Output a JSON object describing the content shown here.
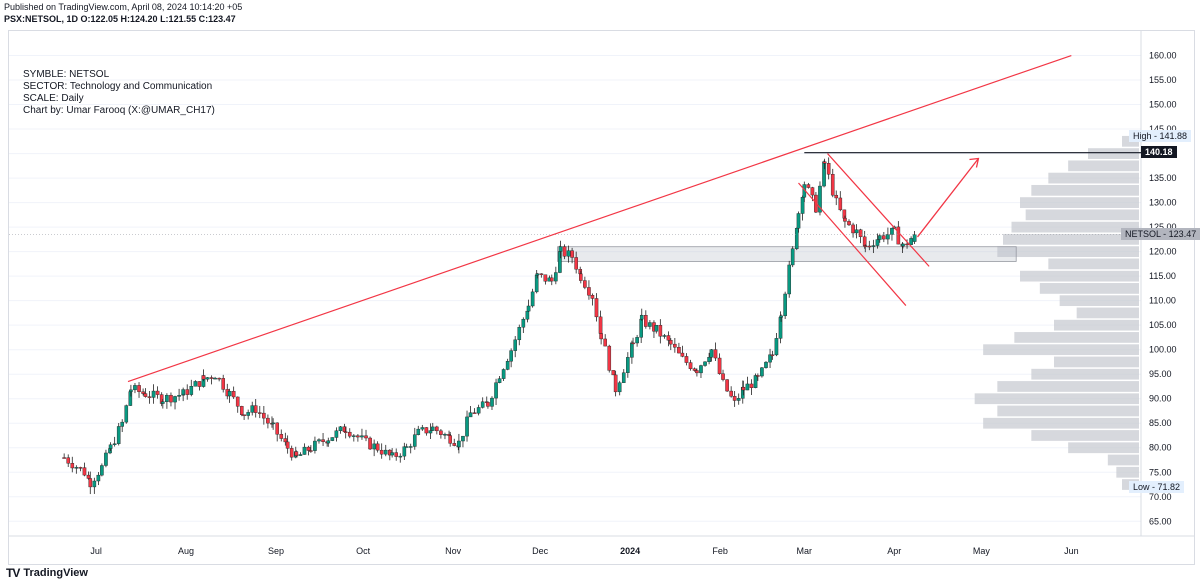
{
  "header": {
    "published": "Published on TradingView.com, April 08, 2024 10:14:20 +05",
    "ohlc": "PSX:NETSOL, 1D O:122.05 H:124.20 L:121.55 C:123.47"
  },
  "info_lines": [
    "SYMBLE: NETSOL",
    "SECTOR: Technology and Communication",
    "SCALE: Daily",
    "Chart by: Umar Farooq (X:@UMAR_CH17)"
  ],
  "price_tags": {
    "high": "High - 141.88",
    "level": "140.18",
    "last": "NETSOL - 123.47",
    "low": "Low - 71.82"
  },
  "brand": {
    "logo": "TV",
    "name": "TradingView"
  },
  "colors": {
    "up": "#089981",
    "down": "#f23645",
    "line": "#f23645",
    "profile": "#c8cbd1",
    "grid": "#f0f3fa"
  },
  "chart_data": {
    "type": "candlestick",
    "symbol": "NETSOL",
    "exchange": "PSX",
    "interval": "1D",
    "x_tick_labels": [
      "Jul",
      "Aug",
      "Sep",
      "Oct",
      "Nov",
      "Dec",
      "2024",
      "Feb",
      "Mar",
      "Apr",
      "May",
      "Jun"
    ],
    "y_ticks": [
      65,
      70,
      75,
      80,
      85,
      90,
      95,
      100,
      105,
      110,
      115,
      120,
      125,
      130,
      135,
      140,
      145,
      150,
      155,
      160
    ],
    "y_tick_format": "2dp",
    "ylim": [
      62,
      165
    ],
    "x_range_days": [
      -30,
      360
    ],
    "date_origin": "2023-07-01",
    "last_ohlc": {
      "open": 122.05,
      "high": 124.2,
      "low": 121.55,
      "close": 123.47
    },
    "period_high": 141.88,
    "period_low": 71.82,
    "horizontal_level": 140.18,
    "close_path": [
      {
        "x": "2023-06-20",
        "y": 78
      },
      {
        "x": "2023-06-27",
        "y": 75
      },
      {
        "x": "2023-06-29",
        "y": 73
      },
      {
        "x": "2023-07-03",
        "y": 76
      },
      {
        "x": "2023-07-06",
        "y": 80
      },
      {
        "x": "2023-07-10",
        "y": 85
      },
      {
        "x": "2023-07-13",
        "y": 92
      },
      {
        "x": "2023-07-18",
        "y": 91
      },
      {
        "x": "2023-07-24",
        "y": 90
      },
      {
        "x": "2023-07-31",
        "y": 91
      },
      {
        "x": "2023-08-07",
        "y": 94
      },
      {
        "x": "2023-08-11",
        "y": 95
      },
      {
        "x": "2023-08-16",
        "y": 91
      },
      {
        "x": "2023-08-21",
        "y": 87
      },
      {
        "x": "2023-08-25",
        "y": 88
      },
      {
        "x": "2023-08-31",
        "y": 84
      },
      {
        "x": "2023-09-05",
        "y": 80
      },
      {
        "x": "2023-09-08",
        "y": 78
      },
      {
        "x": "2023-09-13",
        "y": 80
      },
      {
        "x": "2023-09-19",
        "y": 82
      },
      {
        "x": "2023-09-25",
        "y": 84
      },
      {
        "x": "2023-10-02",
        "y": 81
      },
      {
        "x": "2023-10-06",
        "y": 80
      },
      {
        "x": "2023-10-11",
        "y": 78
      },
      {
        "x": "2023-10-16",
        "y": 80
      },
      {
        "x": "2023-10-20",
        "y": 83
      },
      {
        "x": "2023-10-25",
        "y": 84
      },
      {
        "x": "2023-10-31",
        "y": 82
      },
      {
        "x": "2023-11-03",
        "y": 81
      },
      {
        "x": "2023-11-07",
        "y": 87
      },
      {
        "x": "2023-11-13",
        "y": 89
      },
      {
        "x": "2023-11-17",
        "y": 95
      },
      {
        "x": "2023-11-21",
        "y": 100
      },
      {
        "x": "2023-11-27",
        "y": 109
      },
      {
        "x": "2023-11-30",
        "y": 115
      },
      {
        "x": "2023-12-05",
        "y": 114
      },
      {
        "x": "2023-12-08",
        "y": 120
      },
      {
        "x": "2023-12-12",
        "y": 119
      },
      {
        "x": "2023-12-15",
        "y": 115
      },
      {
        "x": "2023-12-19",
        "y": 111
      },
      {
        "x": "2023-12-22",
        "y": 103
      },
      {
        "x": "2023-12-27",
        "y": 92
      },
      {
        "x": "2024-01-02",
        "y": 101
      },
      {
        "x": "2024-01-05",
        "y": 106
      },
      {
        "x": "2024-01-10",
        "y": 104
      },
      {
        "x": "2024-01-15",
        "y": 101
      },
      {
        "x": "2024-01-19",
        "y": 98
      },
      {
        "x": "2024-01-24",
        "y": 96
      },
      {
        "x": "2024-01-29",
        "y": 100
      },
      {
        "x": "2024-02-02",
        "y": 93
      },
      {
        "x": "2024-02-06",
        "y": 89
      },
      {
        "x": "2024-02-09",
        "y": 92
      },
      {
        "x": "2024-02-14",
        "y": 94
      },
      {
        "x": "2024-02-19",
        "y": 99
      },
      {
        "x": "2024-02-22",
        "y": 108
      },
      {
        "x": "2024-02-26",
        "y": 120
      },
      {
        "x": "2024-02-28",
        "y": 128
      },
      {
        "x": "2024-03-01",
        "y": 134
      },
      {
        "x": "2024-03-05",
        "y": 129
      },
      {
        "x": "2024-03-08",
        "y": 138
      },
      {
        "x": "2024-03-12",
        "y": 130
      },
      {
        "x": "2024-03-15",
        "y": 126
      },
      {
        "x": "2024-03-19",
        "y": 124
      },
      {
        "x": "2024-03-22",
        "y": 121
      },
      {
        "x": "2024-03-27",
        "y": 123
      },
      {
        "x": "2024-04-01",
        "y": 124
      },
      {
        "x": "2024-04-04",
        "y": 121
      },
      {
        "x": "2024-04-08",
        "y": 123.47
      }
    ],
    "drawings": {
      "trendline": {
        "from": {
          "x": "2023-07-12",
          "y": 93.5
        },
        "to": {
          "x": "2024-06-01",
          "y": 160
        }
      },
      "channel_upper": {
        "from": {
          "x": "2024-03-09",
          "y": 140
        },
        "to": {
          "x": "2024-04-13",
          "y": 117
        }
      },
      "channel_lower": {
        "from": {
          "x": "2024-02-28",
          "y": 134
        },
        "to": {
          "x": "2024-04-05",
          "y": 109
        }
      },
      "support_zone": {
        "x0": "2023-12-07",
        "x1": "2024-05-13",
        "y0": 118,
        "y1": 121
      },
      "resistance_line": {
        "x0": "2024-03-01",
        "x1": "2024-06-30",
        "y": 140.18
      },
      "projection_arrow": {
        "from": {
          "x": "2024-04-09",
          "y": 123
        },
        "to": {
          "x": "2024-04-30",
          "y": 139
        }
      }
    },
    "volume_profile": [
      {
        "y": 72.5,
        "w": 6
      },
      {
        "y": 75,
        "w": 8
      },
      {
        "y": 77.5,
        "w": 11
      },
      {
        "y": 80,
        "w": 25
      },
      {
        "y": 82.5,
        "w": 38
      },
      {
        "y": 85,
        "w": 55
      },
      {
        "y": 87.5,
        "w": 50
      },
      {
        "y": 90,
        "w": 58
      },
      {
        "y": 92.5,
        "w": 50
      },
      {
        "y": 95,
        "w": 38
      },
      {
        "y": 97.5,
        "w": 30
      },
      {
        "y": 100,
        "w": 55
      },
      {
        "y": 102.5,
        "w": 44
      },
      {
        "y": 105,
        "w": 30
      },
      {
        "y": 107.5,
        "w": 22
      },
      {
        "y": 110,
        "w": 28
      },
      {
        "y": 112.5,
        "w": 35
      },
      {
        "y": 115,
        "w": 42
      },
      {
        "y": 117.5,
        "w": 32
      },
      {
        "y": 120,
        "w": 50
      },
      {
        "y": 122.5,
        "w": 48
      },
      {
        "y": 125,
        "w": 45
      },
      {
        "y": 127.5,
        "w": 40
      },
      {
        "y": 130,
        "w": 42
      },
      {
        "y": 132.5,
        "w": 38
      },
      {
        "y": 135,
        "w": 32
      },
      {
        "y": 137.5,
        "w": 25
      },
      {
        "y": 140,
        "w": 18
      },
      {
        "y": 142.5,
        "w": 6
      }
    ]
  }
}
